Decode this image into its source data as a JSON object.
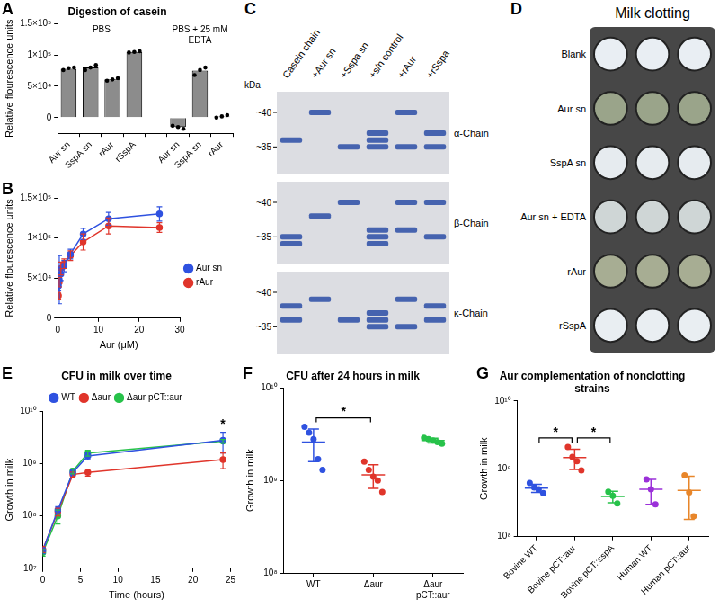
{
  "chart_data": [
    {
      "panel": "A",
      "type": "bar",
      "title": "Digestion of casein",
      "y_label": "Relative flourescence units",
      "color": "#8c8c8c",
      "grid": false,
      "ylim": [
        -25000,
        150000
      ],
      "yticks": [
        0,
        {
          "value": 50000,
          "label": "5×10⁴"
        },
        {
          "value": 100000,
          "label": "1×10⁵"
        },
        {
          "value": 150000,
          "label": "1.5×10⁵"
        }
      ],
      "groups": [
        {
          "label": "PBS",
          "categories": [
            "Aur sn",
            "SspA sn",
            "rAur",
            "rSspA"
          ],
          "values": [
            78000,
            80000,
            61000,
            105000
          ],
          "points": [
            [
              76000,
              79000,
              80000
            ],
            [
              76000,
              80000,
              84000
            ],
            [
              59000,
              61000,
              63000
            ],
            [
              104000,
              105000,
              106000
            ]
          ]
        },
        {
          "label": "PBS + 25 mM EDTA",
          "categories": [
            "Aur sn",
            "SspA sn",
            "rAur"
          ],
          "values": [
            -15000,
            75000,
            2000
          ],
          "points": [
            [
              -13000,
              -15000,
              -18000
            ],
            [
              68000,
              76000,
              80000
            ],
            [
              0,
              2000,
              4000
            ]
          ]
        }
      ]
    },
    {
      "panel": "B",
      "type": "line",
      "y_label": "Relative flourescence units",
      "x_label": "Aur (μM)",
      "grid": false,
      "legend": "right",
      "marker": "circle",
      "xlim": [
        0,
        30
      ],
      "xticks": [
        0,
        10,
        20,
        30
      ],
      "ylim": [
        0,
        150000
      ],
      "yticks": [
        0,
        {
          "value": 50000,
          "label": "5×10⁴"
        },
        {
          "value": 100000,
          "label": "1×10⁵"
        },
        {
          "value": 150000,
          "label": "1.5×10⁵"
        }
      ],
      "x": [
        0.195,
        0.39,
        0.78,
        1.56,
        3.125,
        6.25,
        12.5,
        25
      ],
      "series": [
        {
          "name": "Aur sn",
          "color": "#2f52e0",
          "values": [
            40000,
            48000,
            55000,
            65000,
            80000,
            105000,
            124000,
            130000
          ],
          "errors": [
            5000,
            30000,
            8000,
            7000,
            6000,
            7000,
            8000,
            9000
          ]
        },
        {
          "name": "rAur",
          "color": "#e0352b",
          "values": [
            28000,
            45000,
            62000,
            68000,
            78000,
            95000,
            115000,
            113000
          ],
          "errors": [
            4000,
            6000,
            8000,
            6000,
            6000,
            10000,
            10000,
            6000
          ]
        }
      ]
    },
    {
      "panel": "E",
      "type": "line",
      "title": "CFU in milk over time",
      "y_label": "Growth in milk",
      "x_label": "Time (hours)",
      "grid": false,
      "legend": "top",
      "marker": "circle",
      "log": "y",
      "xlim": [
        0,
        25
      ],
      "xticks": [
        0,
        5,
        10,
        15,
        20,
        25
      ],
      "ylim": [
        10000000,
        10000000000
      ],
      "yticks": [
        {
          "value": 10000000,
          "label": "10⁷"
        },
        {
          "value": 100000000,
          "label": "10⁸"
        },
        {
          "value": 1000000000,
          "label": "10⁹"
        },
        {
          "value": 10000000000,
          "label": "10¹⁰"
        }
      ],
      "x": [
        0,
        2,
        4,
        6,
        24
      ],
      "series": [
        {
          "name": "WT",
          "color": "#2f52e0",
          "values": [
            22000000,
            130000000,
            680000000,
            1400000000,
            2800000000
          ],
          "errors": [
            3000000,
            20000000,
            80000000,
            200000000,
            1200000000
          ]
        },
        {
          "name": "Δaur",
          "color": "#e0352b",
          "values": [
            23000000,
            120000000,
            620000000,
            680000000,
            1200000000
          ],
          "errors": [
            3000000,
            20000000,
            70000000,
            100000000,
            400000000
          ]
        },
        {
          "name": "Δaur pCT::aur",
          "color": "#27c24a",
          "values": [
            20000000,
            100000000,
            720000000,
            1600000000,
            2700000000
          ],
          "errors": [
            3000000,
            30000000,
            80000000,
            200000000,
            200000000
          ]
        }
      ],
      "annotations": [
        {
          "text": "*",
          "x": 24
        }
      ]
    },
    {
      "panel": "F",
      "type": "scatter",
      "title": "CFU after 24 hours in milk",
      "y_label": "Growth in milk",
      "grid": false,
      "log": "y",
      "ylim": [
        100000000,
        10000000000
      ],
      "yticks": [
        {
          "value": 100000000,
          "label": "10⁸"
        },
        {
          "value": 1000000000,
          "label": "10⁹"
        },
        {
          "value": 10000000000,
          "label": "10¹⁰"
        }
      ],
      "categories": [
        "WT",
        "Δaur",
        "Δaur pCT::aur"
      ],
      "colors": [
        "#2f52e0",
        "#e0352b",
        "#27c24a"
      ],
      "values": [
        2600000000,
        1150000000,
        2700000000
      ],
      "errors": [
        1000000000,
        330000000,
        160000000
      ],
      "points": [
        [
          3800000000,
          3300000000,
          2800000000,
          1700000000,
          1300000000
        ],
        [
          1600000000,
          1300000000,
          1100000000,
          1000000000,
          750000000
        ],
        [
          2900000000,
          2800000000,
          2700000000,
          2600000000,
          2500000000
        ]
      ],
      "annotations": [
        {
          "text": "*",
          "between": [
            "WT",
            "Δaur"
          ]
        }
      ]
    },
    {
      "panel": "G",
      "type": "scatter",
      "title": "Aur complementation of nonclotting strains",
      "y_label": "Growth in milk",
      "grid": false,
      "log": "y",
      "ylim": [
        100000000,
        10000000000
      ],
      "yticks": [
        {
          "value": 100000000,
          "label": "10⁸"
        },
        {
          "value": 1000000000,
          "label": "10⁹"
        },
        {
          "value": 10000000000,
          "label": "10¹⁰"
        }
      ],
      "categories": [
        "Bovine WT",
        "Bovine pCT::aur",
        "Bovine pCT::sspA",
        "Human WT",
        "Human pCT::aur"
      ],
      "colors": [
        "#2f52e0",
        "#e0352b",
        "#27c24a",
        "#9b30d9",
        "#e8862a"
      ],
      "values": [
        520000000,
        1460000000,
        390000000,
        500000000,
        480000000
      ],
      "errors": [
        70000000,
        480000000,
        75000000,
        200000000,
        300000000
      ],
      "points": [
        [
          620000000,
          530000000,
          500000000,
          440000000
        ],
        [
          2100000000,
          1500000000,
          1300000000,
          950000000
        ],
        [
          460000000,
          400000000,
          310000000
        ],
        [
          700000000,
          500000000,
          300000000
        ],
        [
          800000000,
          450000000,
          200000000
        ]
      ],
      "annotations": [
        {
          "text": "*",
          "between": [
            "Bovine WT",
            "Bovine pCT::aur"
          ]
        },
        {
          "text": "*",
          "between": [
            "Bovine pCT::aur",
            "Bovine pCT::sspA"
          ]
        }
      ]
    }
  ],
  "gel": {
    "panel": "C",
    "marker_label": "kDa",
    "ylim": [
      31,
      43
    ],
    "color": "#2b4ea6",
    "markers": [
      {
        "value": 40,
        "label": "~40"
      },
      {
        "value": 35,
        "label": "~35"
      }
    ],
    "lanes": [
      "Casein chain",
      "+Aur sn",
      "+Sspa sn",
      "+s/n control",
      "+rAur",
      "+rSspa"
    ],
    "rows": [
      {
        "label": "α-Chain",
        "bands": [
          [
            36
          ],
          [
            40
          ],
          [
            35
          ],
          [
            37,
            36,
            35
          ],
          [
            40,
            35
          ],
          [
            37,
            35
          ]
        ]
      },
      {
        "label": "β-Chain",
        "bands": [
          [
            35,
            34
          ],
          [
            38
          ],
          [
            40
          ],
          [
            36,
            35,
            34
          ],
          [
            40,
            36
          ],
          [
            40,
            35
          ]
        ]
      },
      {
        "label": "κ-Chain",
        "bands": [
          [
            38,
            36
          ],
          [
            39
          ],
          [
            36
          ],
          [
            37,
            36,
            35
          ],
          [
            39,
            35
          ],
          [
            38,
            36
          ]
        ]
      }
    ]
  },
  "plate": {
    "panel": "D",
    "title": "Milk clotting",
    "rows": [
      {
        "label": "Blank",
        "color": "#e9eef3",
        "wells": 3
      },
      {
        "label": "Aur sn",
        "color": "#9aa48a",
        "wells": 3
      },
      {
        "label": "SspA sn",
        "color": "#e6ebef",
        "wells": 3
      },
      {
        "label": "Aur sn + EDTA",
        "color": "#cfd6d6",
        "wells": 3
      },
      {
        "label": "rAur",
        "color": "#a7ad93",
        "wells": 3
      },
      {
        "label": "rSspA",
        "color": "#e9eef2",
        "wells": 3
      }
    ]
  }
}
